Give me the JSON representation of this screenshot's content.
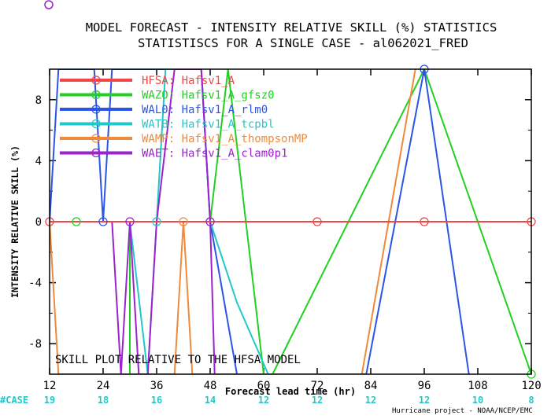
{
  "chart_data": {
    "type": "line",
    "title": "MODEL FORECAST - INTENSITY RELATIVE SKILL (%) STATISTICS",
    "subtitle": "STATISTISCS FOR A SINGLE CASE - al062021_FRED",
    "xlabel": "Forecast lead time (hr)",
    "ylabel": "INTENSITY RELATIVE SKILL (%)",
    "xlim": [
      12,
      120
    ],
    "ylim": [
      -10,
      10
    ],
    "xticks": [
      12,
      24,
      36,
      48,
      60,
      72,
      84,
      96,
      108,
      120
    ],
    "yticks": [
      -8,
      -4,
      0,
      4,
      8
    ],
    "case_label": "#CASE",
    "cases": [
      {
        "x": 12,
        "n": "19"
      },
      {
        "x": 24,
        "n": "18"
      },
      {
        "x": 36,
        "n": "16"
      },
      {
        "x": 48,
        "n": "14"
      },
      {
        "x": 60,
        "n": "12"
      },
      {
        "x": 72,
        "n": "12"
      },
      {
        "x": 84,
        "n": "12"
      },
      {
        "x": 96,
        "n": "12"
      },
      {
        "x": 108,
        "n": "10"
      },
      {
        "x": 120,
        "n": "8"
      }
    ],
    "annotation": "SKILL PLOT RELATIVE TO THE HFSA MODEL",
    "credit": "Hurricane project - NOAA/NCEP/EMC",
    "series": [
      {
        "id": "HFSA",
        "name": "Hafsv1_A",
        "color": "#f24545",
        "points": [
          [
            12,
            0
          ],
          [
            24,
            0
          ],
          [
            36,
            0
          ],
          [
            48,
            0
          ],
          [
            60,
            0
          ],
          [
            72,
            0
          ],
          [
            84,
            0
          ],
          [
            96,
            0
          ],
          [
            108,
            0
          ],
          [
            120,
            0
          ]
        ]
      },
      {
        "id": "WAZO",
        "name": "Hafsv1_A_gfsz0",
        "color": "#22d022",
        "points": [
          [
            12,
            0
          ],
          [
            18,
            0
          ],
          [
            24,
            0
          ],
          [
            30,
            0
          ],
          [
            36,
            0
          ],
          [
            42,
            0
          ],
          [
            48,
            0
          ],
          [
            54,
            0
          ],
          [
            60,
            0
          ],
          [
            66,
            0
          ],
          [
            72,
            0
          ],
          [
            78,
            0
          ],
          [
            84,
            0
          ],
          [
            90,
            0
          ],
          [
            96,
            0
          ],
          [
            102,
            0
          ],
          [
            108,
            0
          ],
          [
            114,
            0
          ],
          [
            120,
            0
          ]
        ],
        "spikes": [
          [
            24,
            0
          ],
          [
            30,
            0
          ],
          [
            30,
            -10
          ],
          [
            30,
            0
          ],
          [
            48,
            0
          ],
          [
            52,
            10
          ],
          [
            60,
            -10
          ],
          [
            62,
            -10
          ],
          [
            96,
            10
          ],
          [
            120,
            -10
          ]
        ]
      },
      {
        "id": "WAL0",
        "name": "Hafsv1_A_rlm0",
        "color": "#2a55e8",
        "points": [
          [
            12,
            0
          ],
          [
            14,
            10
          ],
          [
            22,
            10
          ],
          [
            24,
            0
          ],
          [
            26,
            10
          ],
          [
            46,
            10
          ],
          [
            48,
            0
          ],
          [
            54,
            -10
          ],
          [
            83,
            -10
          ],
          [
            96,
            10
          ],
          [
            106,
            -10
          ]
        ]
      },
      {
        "id": "WATB",
        "name": "Hafsv1_A_tcpbl",
        "color": "#22c8c8",
        "points": [
          [
            12,
            0
          ],
          [
            30,
            0
          ],
          [
            34,
            -10
          ],
          [
            36,
            0
          ],
          [
            38,
            10
          ],
          [
            46,
            10
          ],
          [
            48,
            0
          ],
          [
            54,
            -5.3
          ],
          [
            61,
            -10
          ]
        ]
      },
      {
        "id": "WAMP",
        "name": "Hafsv1_A_thompsonMP",
        "color": "#f08a3a",
        "points": [
          [
            12,
            0
          ],
          [
            14,
            -10
          ],
          [
            40,
            -10
          ],
          [
            42,
            0
          ],
          [
            44,
            -10
          ],
          [
            82,
            -10
          ],
          [
            94,
            10
          ]
        ]
      },
      {
        "id": "WAET",
        "name": "Hafsv1_A_clam0p1",
        "color": "#9b22cc",
        "points": [
          [
            12,
            0
          ],
          [
            26,
            0
          ],
          [
            28,
            -10
          ],
          [
            30,
            0
          ],
          [
            32,
            -10
          ],
          [
            34,
            -10
          ],
          [
            36,
            0
          ],
          [
            40,
            10
          ],
          [
            46,
            10
          ],
          [
            48,
            0
          ],
          [
            49,
            -10
          ]
        ]
      }
    ]
  }
}
